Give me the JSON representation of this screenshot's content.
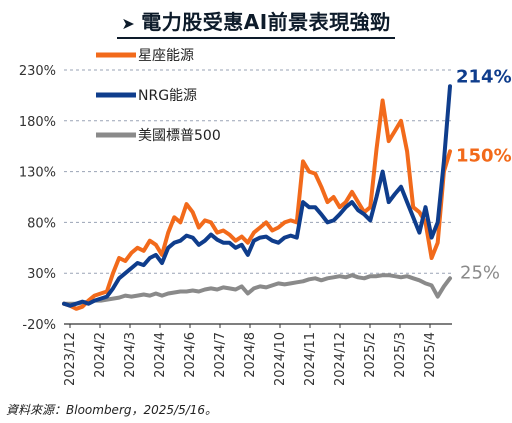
{
  "title": "電力股受惠AI前景表現強勁",
  "title_marker": "➤",
  "source": "資料來源：Bloomberg，2025/5/16。",
  "chart_data": {
    "type": "line",
    "ylim": [
      -20,
      230
    ],
    "yticks": [
      -20,
      30,
      80,
      130,
      180,
      230
    ],
    "ytick_labels": [
      "-20%",
      "30%",
      "80%",
      "130%",
      "180%",
      "230%"
    ],
    "xtick_labels": [
      "2023/12",
      "2024/2",
      "2024/3",
      "2024/4",
      "2024/6",
      "2024/7",
      "2024/8",
      "2024/10",
      "2024/11",
      "2024/12",
      "2025/2",
      "2025/3",
      "2025/4"
    ],
    "x_end": 63,
    "legend_position": "top-left",
    "series": [
      {
        "name": "星座能源",
        "color": "#f26a1b",
        "end_label": "150%",
        "points": [
          [
            0,
            0
          ],
          [
            1,
            -2
          ],
          [
            2,
            -5
          ],
          [
            3,
            -3
          ],
          [
            4,
            3
          ],
          [
            5,
            8
          ],
          [
            6,
            10
          ],
          [
            7,
            12
          ],
          [
            8,
            30
          ],
          [
            9,
            45
          ],
          [
            10,
            42
          ],
          [
            11,
            50
          ],
          [
            12,
            55
          ],
          [
            13,
            52
          ],
          [
            14,
            62
          ],
          [
            15,
            58
          ],
          [
            16,
            48
          ],
          [
            17,
            70
          ],
          [
            18,
            85
          ],
          [
            19,
            80
          ],
          [
            20,
            98
          ],
          [
            21,
            90
          ],
          [
            22,
            75
          ],
          [
            23,
            82
          ],
          [
            24,
            80
          ],
          [
            25,
            70
          ],
          [
            26,
            72
          ],
          [
            27,
            68
          ],
          [
            28,
            62
          ],
          [
            29,
            66
          ],
          [
            30,
            60
          ],
          [
            31,
            70
          ],
          [
            32,
            75
          ],
          [
            33,
            80
          ],
          [
            34,
            72
          ],
          [
            35,
            75
          ],
          [
            36,
            80
          ],
          [
            37,
            82
          ],
          [
            38,
            80
          ],
          [
            39,
            140
          ],
          [
            40,
            130
          ],
          [
            41,
            128
          ],
          [
            42,
            115
          ],
          [
            43,
            100
          ],
          [
            44,
            105
          ],
          [
            45,
            95
          ],
          [
            46,
            100
          ],
          [
            47,
            110
          ],
          [
            48,
            100
          ],
          [
            49,
            90
          ],
          [
            50,
            95
          ],
          [
            51,
            152
          ],
          [
            52,
            200
          ],
          [
            53,
            160
          ],
          [
            54,
            170
          ],
          [
            55,
            180
          ],
          [
            56,
            150
          ],
          [
            57,
            95
          ],
          [
            58,
            90
          ],
          [
            59,
            80
          ],
          [
            60,
            45
          ],
          [
            61,
            60
          ],
          [
            62,
            130
          ],
          [
            63,
            150
          ]
        ]
      },
      {
        "name": "NRG能源",
        "color": "#0f3d8c",
        "end_label": "214%",
        "points": [
          [
            0,
            0
          ],
          [
            1,
            -2
          ],
          [
            2,
            0
          ],
          [
            3,
            2
          ],
          [
            4,
            0
          ],
          [
            5,
            3
          ],
          [
            6,
            5
          ],
          [
            7,
            7
          ],
          [
            8,
            15
          ],
          [
            9,
            25
          ],
          [
            10,
            30
          ],
          [
            11,
            35
          ],
          [
            12,
            40
          ],
          [
            13,
            38
          ],
          [
            14,
            45
          ],
          [
            15,
            48
          ],
          [
            16,
            40
          ],
          [
            17,
            55
          ],
          [
            18,
            60
          ],
          [
            19,
            62
          ],
          [
            20,
            67
          ],
          [
            21,
            65
          ],
          [
            22,
            58
          ],
          [
            23,
            62
          ],
          [
            24,
            68
          ],
          [
            25,
            63
          ],
          [
            26,
            60
          ],
          [
            27,
            60
          ],
          [
            28,
            55
          ],
          [
            29,
            58
          ],
          [
            30,
            48
          ],
          [
            31,
            62
          ],
          [
            32,
            65
          ],
          [
            33,
            66
          ],
          [
            34,
            62
          ],
          [
            35,
            60
          ],
          [
            36,
            65
          ],
          [
            37,
            67
          ],
          [
            38,
            65
          ],
          [
            39,
            100
          ],
          [
            40,
            95
          ],
          [
            41,
            95
          ],
          [
            42,
            88
          ],
          [
            43,
            80
          ],
          [
            44,
            82
          ],
          [
            45,
            88
          ],
          [
            46,
            95
          ],
          [
            47,
            100
          ],
          [
            48,
            92
          ],
          [
            49,
            88
          ],
          [
            50,
            82
          ],
          [
            51,
            105
          ],
          [
            52,
            130
          ],
          [
            53,
            100
          ],
          [
            54,
            108
          ],
          [
            55,
            115
          ],
          [
            56,
            100
          ],
          [
            57,
            85
          ],
          [
            58,
            70
          ],
          [
            59,
            95
          ],
          [
            60,
            65
          ],
          [
            61,
            80
          ],
          [
            62,
            140
          ],
          [
            63,
            214
          ]
        ]
      },
      {
        "name": "美國標普500",
        "color": "#8a8a8a",
        "end_label": "25%",
        "points": [
          [
            0,
            0
          ],
          [
            1,
            0
          ],
          [
            2,
            0
          ],
          [
            3,
            1
          ],
          [
            4,
            2
          ],
          [
            5,
            3
          ],
          [
            6,
            3
          ],
          [
            7,
            4
          ],
          [
            8,
            5
          ],
          [
            9,
            6
          ],
          [
            10,
            8
          ],
          [
            11,
            7
          ],
          [
            12,
            8
          ],
          [
            13,
            9
          ],
          [
            14,
            8
          ],
          [
            15,
            10
          ],
          [
            16,
            8
          ],
          [
            17,
            10
          ],
          [
            18,
            11
          ],
          [
            19,
            12
          ],
          [
            20,
            12
          ],
          [
            21,
            13
          ],
          [
            22,
            12
          ],
          [
            23,
            14
          ],
          [
            24,
            15
          ],
          [
            25,
            14
          ],
          [
            26,
            16
          ],
          [
            27,
            15
          ],
          [
            28,
            14
          ],
          [
            29,
            17
          ],
          [
            30,
            10
          ],
          [
            31,
            15
          ],
          [
            32,
            17
          ],
          [
            33,
            16
          ],
          [
            34,
            18
          ],
          [
            35,
            20
          ],
          [
            36,
            19
          ],
          [
            37,
            20
          ],
          [
            38,
            21
          ],
          [
            39,
            22
          ],
          [
            40,
            24
          ],
          [
            41,
            25
          ],
          [
            42,
            23
          ],
          [
            43,
            25
          ],
          [
            44,
            26
          ],
          [
            45,
            27
          ],
          [
            46,
            26
          ],
          [
            47,
            28
          ],
          [
            48,
            26
          ],
          [
            49,
            25
          ],
          [
            50,
            27
          ],
          [
            51,
            27
          ],
          [
            52,
            28
          ],
          [
            53,
            28
          ],
          [
            54,
            27
          ],
          [
            55,
            26
          ],
          [
            56,
            27
          ],
          [
            57,
            25
          ],
          [
            58,
            23
          ],
          [
            59,
            20
          ],
          [
            60,
            18
          ],
          [
            61,
            7
          ],
          [
            62,
            17
          ],
          [
            63,
            25
          ]
        ]
      }
    ]
  }
}
